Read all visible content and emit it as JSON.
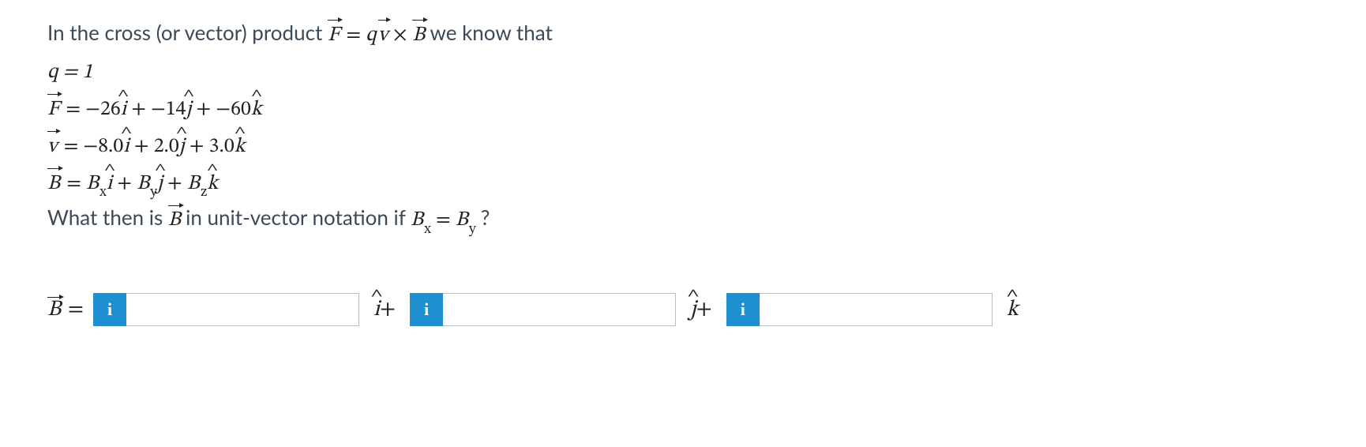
{
  "colors": {
    "body_text": "#3a4a58",
    "math_text": "#222222",
    "info_button_bg": "#1e90d2",
    "info_button_fg": "#ffffff",
    "input_border": "#b6bdc3",
    "background": "#ffffff"
  },
  "typography": {
    "body_font": "Lato / Helvetica Neue",
    "math_font": "Cambria Math / STIX",
    "body_fontsize_pt": 20,
    "answer_fontsize_pt": 21
  },
  "problem": {
    "intro_pre": "In the cross (or vector) product ",
    "intro_post": " we know that",
    "cross_eq_lhs": "F",
    "cross_eq_eq": " = ",
    "cross_q": "q",
    "cross_v": "v",
    "cross_times": " × ",
    "cross_B": "B",
    "q_line": "q = 1",
    "F_expr": {
      "lhs": "F",
      "eq": " = ",
      "i_coef": "−26",
      "j_coef": "−14",
      "k_coef": "−60",
      "i": "i",
      "j": "j",
      "k": "k",
      "plus1": " + ",
      "plus2": " + "
    },
    "v_expr": {
      "lhs": "v",
      "eq": " = ",
      "i_coef": "−8.0",
      "j_coef": "2.0",
      "k_coef": "3.0",
      "i": "i",
      "j": "j",
      "k": "k",
      "plus1": " + ",
      "plus2": " + "
    },
    "B_expr": {
      "lhs": "B",
      "eq": " = ",
      "Bx": "B",
      "By": "B",
      "Bz": "B",
      "sub_x": "x",
      "sub_y": "y",
      "sub_z": "z",
      "i": "i",
      "j": "j",
      "k": "k",
      "plus1": " + ",
      "plus2": " + "
    },
    "question_pre": "What then is ",
    "question_vec": "B",
    "question_mid": " in unit-vector notation if ",
    "question_Bx": "B",
    "question_sub_x": "x",
    "question_eq": " = ",
    "question_By": "B",
    "question_sub_y": "y",
    "question_post": "?"
  },
  "answer": {
    "lhs_vec": "B",
    "equals": " = ",
    "info_glyph": "i",
    "unit_i": "i",
    "unit_j": "j",
    "unit_k": "k",
    "plus": "+",
    "inputs": {
      "i_value": "",
      "j_value": "",
      "k_value": ""
    }
  }
}
